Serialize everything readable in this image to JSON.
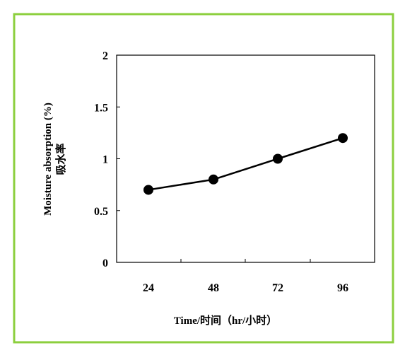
{
  "chart_data": {
    "type": "line",
    "title": "",
    "xlabel": "Time/时间（hr/小时）",
    "ylabel": "Moisture absorption (%)",
    "ylabel_line2": "吸水率",
    "categories": [
      "24",
      "48",
      "72",
      "96"
    ],
    "series": [
      {
        "values": [
          0.7,
          0.8,
          1.0,
          1.2
        ]
      }
    ],
    "ylim": [
      0,
      2
    ],
    "yticks": [
      "0",
      "0.5",
      "1",
      "1.5",
      "2"
    ],
    "grid": false,
    "legend": "none"
  },
  "colors": {
    "frame": "#8ccf3e",
    "line": "#000000",
    "marker": "#000000"
  }
}
